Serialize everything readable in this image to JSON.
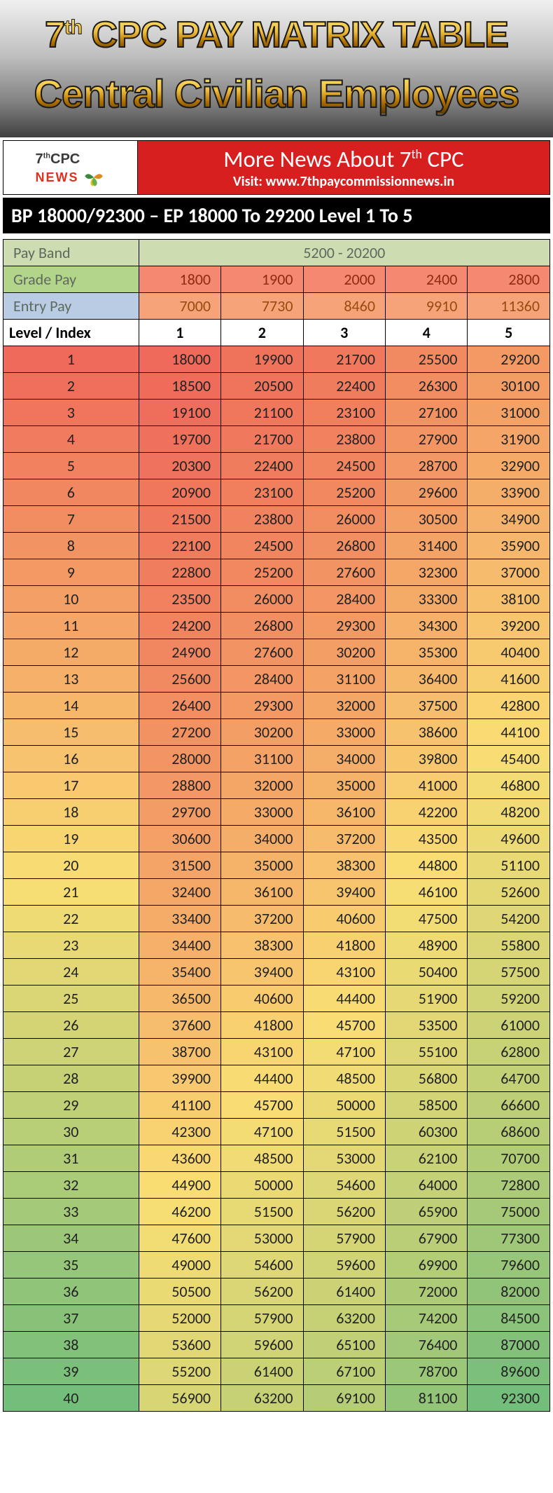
{
  "header": {
    "line1_html": "7<sup>th</sup> CPC PAY MATRIX TABLE",
    "line2": "Central Civilian Employees"
  },
  "newsbar": {
    "logo_top_html": "7<sup>th</sup>CPC",
    "logo_bottom": "NEWS",
    "banner_line1_html": "More News About 7<sup>th</sup> CPC",
    "banner_line2": "Visit: www.7thpaycommissionnews.in",
    "banner_bg": "#d81f1f"
  },
  "blackbar": "BP 18000/92300 – EP 18000 To 29200 Level 1 To 5",
  "table": {
    "labels": {
      "pay_band": "Pay Band",
      "grade_pay": "Grade Pay",
      "entry_pay": "Entry Pay",
      "level_index": "Level / Index"
    },
    "pay_band": "5200 - 20200",
    "grade_pay": [
      1800,
      1900,
      2000,
      2400,
      2800
    ],
    "entry_pay": [
      7000,
      7730,
      8460,
      9910,
      11360
    ],
    "levels": [
      1,
      2,
      3,
      4,
      5
    ],
    "rows": [
      [
        18000,
        19900,
        21700,
        25500,
        29200
      ],
      [
        18500,
        20500,
        22400,
        26300,
        30100
      ],
      [
        19100,
        21100,
        23100,
        27100,
        31000
      ],
      [
        19700,
        21700,
        23800,
        27900,
        31900
      ],
      [
        20300,
        22400,
        24500,
        28700,
        32900
      ],
      [
        20900,
        23100,
        25200,
        29600,
        33900
      ],
      [
        21500,
        23800,
        26000,
        30500,
        34900
      ],
      [
        22100,
        24500,
        26800,
        31400,
        35900
      ],
      [
        22800,
        25200,
        27600,
        32300,
        37000
      ],
      [
        23500,
        26000,
        28400,
        33300,
        38100
      ],
      [
        24200,
        26800,
        29300,
        34300,
        39200
      ],
      [
        24900,
        27600,
        30200,
        35300,
        40400
      ],
      [
        25600,
        28400,
        31100,
        36400,
        41600
      ],
      [
        26400,
        29300,
        32000,
        37500,
        42800
      ],
      [
        27200,
        30200,
        33000,
        38600,
        44100
      ],
      [
        28000,
        31100,
        34000,
        39800,
        45400
      ],
      [
        28800,
        32000,
        35000,
        41000,
        46800
      ],
      [
        29700,
        33000,
        36100,
        42200,
        48200
      ],
      [
        30600,
        34000,
        37200,
        43500,
        49600
      ],
      [
        31500,
        35000,
        38300,
        44800,
        51100
      ],
      [
        32400,
        36100,
        39400,
        46100,
        52600
      ],
      [
        33400,
        37200,
        40600,
        47500,
        54200
      ],
      [
        34400,
        38300,
        41800,
        48900,
        55800
      ],
      [
        35400,
        39400,
        43100,
        50400,
        57500
      ],
      [
        36500,
        40600,
        44400,
        51900,
        59200
      ],
      [
        37600,
        41800,
        45700,
        53500,
        61000
      ],
      [
        38700,
        43100,
        47100,
        55100,
        62800
      ],
      [
        39900,
        44400,
        48500,
        56800,
        64700
      ],
      [
        41100,
        45700,
        50000,
        58500,
        66600
      ],
      [
        42300,
        47100,
        51500,
        60300,
        68600
      ],
      [
        43600,
        48500,
        53000,
        62100,
        70700
      ],
      [
        44900,
        50000,
        54600,
        64000,
        72800
      ],
      [
        46200,
        51500,
        56200,
        65900,
        75000
      ],
      [
        47600,
        53000,
        57900,
        67900,
        77300
      ],
      [
        49000,
        54600,
        59600,
        69900,
        79600
      ],
      [
        50500,
        56200,
        61400,
        72000,
        82000
      ],
      [
        52000,
        57900,
        63200,
        74200,
        84500
      ],
      [
        53600,
        59600,
        65100,
        76400,
        87000
      ],
      [
        55200,
        61400,
        67100,
        78700,
        89600
      ],
      [
        56900,
        63200,
        69100,
        81100,
        92300
      ]
    ],
    "heatmap": {
      "min_color": "#ef6a5a",
      "mid_color": "#fade74",
      "max_color": "#74be7b",
      "min_val": 18000,
      "mid_val": 45000,
      "max_val": 92300,
      "idx_min_color": "#ef6a5a",
      "idx_mid_color": "#fade74",
      "idx_max_color": "#74be7b"
    }
  }
}
